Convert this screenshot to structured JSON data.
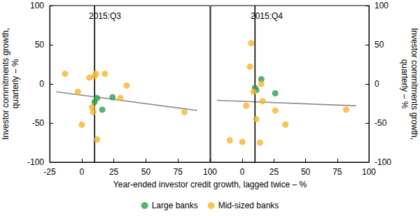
{
  "xlabel": "Year-ended investor credit growth, lagged twice – %",
  "legend": "bottom",
  "chart_data": [
    {
      "type": "scatter",
      "title": "2015:Q3",
      "ylabel": "Investor commitments growth, quarterly – %",
      "xlim": [
        -25,
        100
      ],
      "xticks": [
        -25,
        0,
        25,
        50,
        75,
        100
      ],
      "ylim": [
        -100,
        100
      ],
      "yticks": [
        -100,
        -50,
        0,
        50,
        100
      ],
      "grid": false,
      "series": [
        {
          "name": "Large banks",
          "type": "scatter",
          "marker": "circle",
          "color": "#2e9e4a",
          "x": [
            10,
            12,
            16,
            24
          ],
          "values": [
            -23,
            -18,
            -33,
            -17
          ]
        },
        {
          "name": "Mid-sized banks",
          "type": "scatter",
          "marker": "circle",
          "color": "#f9b429",
          "x": [
            -13,
            -3,
            0,
            6,
            8,
            9,
            10,
            11,
            12,
            18,
            30,
            35,
            80
          ],
          "values": [
            13,
            -10,
            -52,
            8,
            -30,
            -36,
            10,
            13,
            -71,
            13,
            -18,
            -2,
            -36
          ]
        },
        {
          "type": "line",
          "line_style": "solid",
          "color": "#8c8c8c",
          "x": [
            -20,
            90
          ],
          "values": [
            -10,
            -34
          ]
        },
        {
          "type": "line",
          "line_style": "solid",
          "color": "#000000",
          "x": [
            10,
            10
          ],
          "values": [
            -100,
            100
          ]
        }
      ]
    },
    {
      "type": "scatter",
      "title": "2015:Q4",
      "ylabel": "Investor commitments growth, quarterly – %",
      "xlim": [
        -25,
        100
      ],
      "xticks": [
        0,
        25,
        50,
        75,
        100
      ],
      "ylim": [
        -100,
        100
      ],
      "yticks": [
        -100,
        -50,
        0,
        50,
        100
      ],
      "grid": false,
      "series": [
        {
          "name": "Large banks",
          "type": "scatter",
          "marker": "circle",
          "color": "#2e9e4a",
          "x": [
            10,
            11,
            15,
            26
          ],
          "values": [
            -5,
            -8,
            6,
            -12
          ]
        },
        {
          "name": "Mid-sized banks",
          "type": "scatter",
          "marker": "circle",
          "color": "#f9b429",
          "x": [
            -10,
            0,
            3,
            6,
            7,
            9,
            11,
            14,
            15,
            16,
            26,
            34,
            82
          ],
          "values": [
            -72,
            -74,
            -28,
            22,
            52,
            -10,
            -45,
            -75,
            0,
            -22,
            -34,
            -52,
            -33
          ]
        },
        {
          "type": "line",
          "line_style": "solid",
          "color": "#8c8c8c",
          "x": [
            -20,
            90
          ],
          "values": [
            -21,
            -28
          ]
        },
        {
          "type": "line",
          "line_style": "solid",
          "color": "#000000",
          "x": [
            10,
            10
          ],
          "values": [
            -100,
            100
          ]
        }
      ]
    }
  ]
}
